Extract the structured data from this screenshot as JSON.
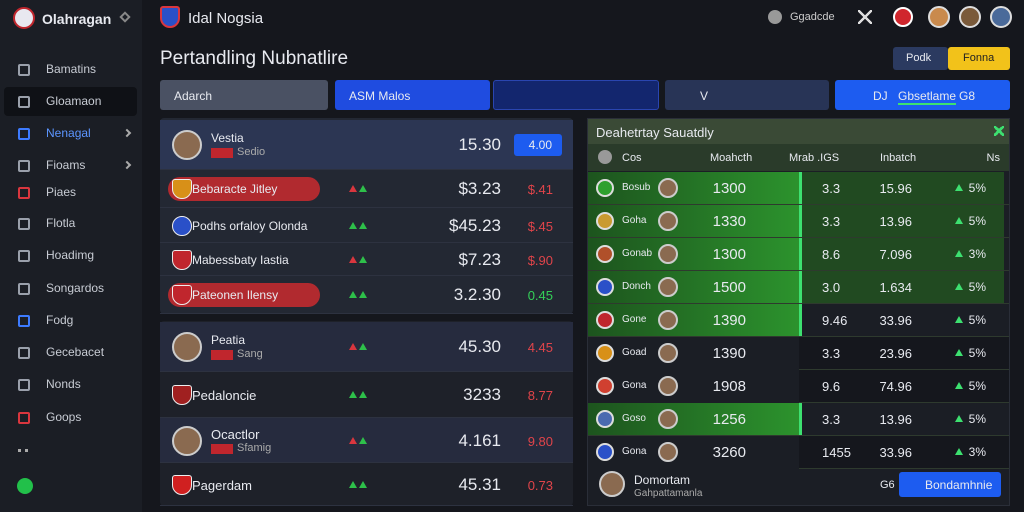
{
  "sidebar": {
    "brand": "Olahragan",
    "items": [
      "Bamatins",
      "Gloamaon",
      "Nenagal",
      "Fioams",
      "Piaes",
      "Flotla",
      "Hoadimg",
      "Songardos",
      "Fodg",
      "Gecebacet",
      "Nonds",
      "Goops"
    ]
  },
  "topbar": {
    "title": "Idal Nogsia",
    "user": "Ggadcde"
  },
  "page": {
    "title": "Pertandling Nubnatlire",
    "buttons": [
      "Podk",
      "Fonna"
    ],
    "filters": [
      "Adarch",
      "ASM Malos",
      "V",
      "DJ",
      "Gbsetlame",
      "G8"
    ]
  },
  "matches": [
    {
      "name": "Vestia",
      "sub": "Sedio",
      "odds": "15.30",
      "change": "4.00"
    },
    {
      "name": "Bebaracte Jitley",
      "odds": "$3.23",
      "change": "$.41"
    },
    {
      "name": "Podhs orfaloy Olonda",
      "odds": "$45.23",
      "change": "$.45"
    },
    {
      "name": "Mabessbaty Iastia",
      "odds": "$7.23",
      "change": "$.90"
    },
    {
      "name": "Pateonen Ilensy",
      "odds": "3.2.30",
      "change": "0.45"
    },
    {
      "name": "Peatia",
      "sub": "Sang",
      "odds": "45.30",
      "change": "4.45"
    },
    {
      "name": "Pedaloncie",
      "odds": "3233",
      "change": "8.77"
    },
    {
      "name": "Ocactlor",
      "sub": "Sfamig",
      "odds": "4.161",
      "change": "9.80"
    },
    {
      "name": "Pagerdam",
      "odds": "45.31",
      "change": "0.73"
    }
  ],
  "table": {
    "title": "Deahetrtay Sauatdly",
    "columns": [
      "Cos",
      "Moahcth",
      "Mrab .IGS",
      "Inbatch",
      "Ns"
    ],
    "rows": [
      [
        "Bosub",
        "1300",
        "3.3",
        "15.96",
        "5%"
      ],
      [
        "Goha",
        "1330",
        "3.3",
        "13.96",
        "5%"
      ],
      [
        "Gonab",
        "1300",
        "8.6",
        "7.096",
        "3%"
      ],
      [
        "Donch",
        "1500",
        "3.0",
        "1.634",
        "5%"
      ],
      [
        "Gone",
        "1390",
        "9.46",
        "33.96",
        "5%"
      ],
      [
        "Goad",
        "1390",
        "3.3",
        "23.96",
        "5%"
      ],
      [
        "Gona",
        "1908",
        "9.6",
        "74.96",
        "5%"
      ],
      [
        "Goso",
        "1256",
        "3.3",
        "13.96",
        "5%"
      ],
      [
        "Gona",
        "3260",
        "1455",
        "33.96",
        "3%"
      ]
    ],
    "footer": {
      "name": "Domortam",
      "sub": "Gahpattamanla",
      "value": "G6",
      "button": "Bondamhnie"
    }
  }
}
